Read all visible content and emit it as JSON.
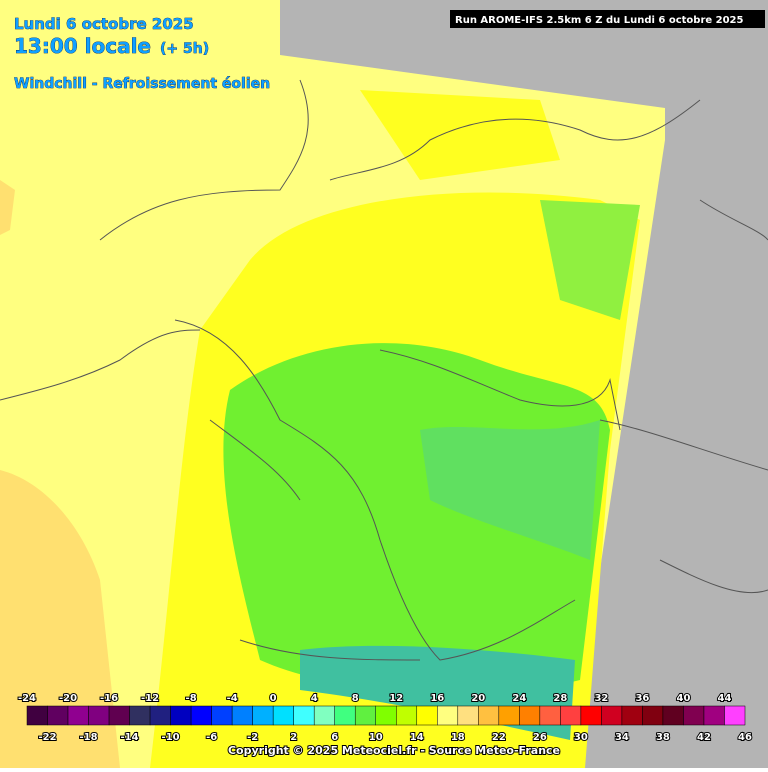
{
  "header": {
    "date": "Lundi 6 octobre 2025",
    "time": "13:00 locale",
    "offset": "(+ 5h)",
    "parameter": "Windchill - Refroissement éolien",
    "run": "Run AROME-IFS 2.5km 6 Z du Lundi 6 octobre 2025"
  },
  "legend": {
    "ticks": [
      -24,
      -22,
      -20,
      -18,
      -16,
      -14,
      -12,
      -10,
      -8,
      -6,
      -4,
      -2,
      0,
      2,
      4,
      6,
      8,
      10,
      12,
      14,
      16,
      18,
      20,
      22,
      24,
      26,
      28,
      30,
      32,
      34,
      36,
      38,
      40,
      42,
      44,
      46
    ],
    "colors": [
      "#400040",
      "#600060",
      "#900090",
      "#800080",
      "#600050",
      "#303060",
      "#202080",
      "#0000c0",
      "#0000ff",
      "#0040ff",
      "#0080ff",
      "#00b0ff",
      "#00e0ff",
      "#40ffff",
      "#80ffc0",
      "#40ff80",
      "#60f040",
      "#80ff00",
      "#c0ff00",
      "#ffff00",
      "#ffff80",
      "#ffe080",
      "#ffc040",
      "#ffa000",
      "#ff8000",
      "#ff6040",
      "#ff4040",
      "#ff0000",
      "#d00020",
      "#a00010",
      "#800010",
      "#600020",
      "#800050",
      "#a00080",
      "#ff40ff"
    ]
  },
  "footer": {
    "copyright": "Copyright © 2025 Meteociel.fr - Source Meteo-France"
  }
}
